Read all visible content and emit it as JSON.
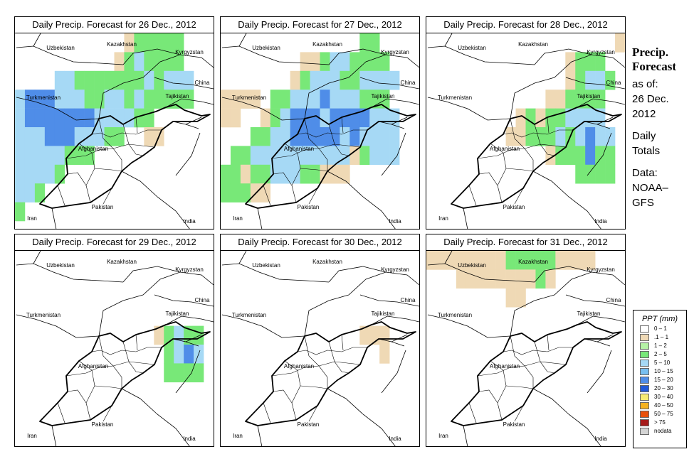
{
  "panels": [
    {
      "title": "Daily Precip. Forecast for  26 Dec., 2012",
      "grid": [
        "...........aBBBBB...",
        "..........aBCBBBB...",
        "....CCBBBBBBBCBCCC..",
        "CDDDCCCBBCCBCBBBBB..",
        "CDDDDDDDCCCCBB......",
        "CCCDDDCCCBB..aa.....",
        "CCCCCBBB............",
        "CCCCB...............",
        "CCB.................",
        "B..................."
      ]
    },
    {
      "title": "Daily Precip. Forecast for  27 Dec., 2012",
      "grid": [
        "..............BB....",
        "........aaBCCBBBB...",
        ".......aBCCCBBCCCC..",
        "aaaa.BBCCCDCCCBBB...",
        "aa..aBCDDDCDDDDCCC..",
        "...BBCCDDDDDCDCCCC..",
        ".BBCCCCCCCCCCaBCCC..",
        "BBaBBCCCBBaaa.......",
        "BBBaa...............",
        "...................."
      ]
    },
    {
      "title": "Daily Precip. Forecast for  28 Dec., 2012",
      "grid": [
        "...................a",
        "..............aBBB..",
        "..............aBCCB.",
        "............aaBBBB..",
        ".........aBaBBCCCC..",
        "........aaBBBCBCDCC.",
        "............aBBBDBB.",
        "...............BBBB.",
        "....................",
        "...................."
      ]
    },
    {
      "title": "Daily Precip. Forecast for  29 Dec., 2012",
      "grid": [
        "....................",
        "....................",
        "....................",
        "....................",
        "..............aBCBB.",
        "...............BCDC.",
        "...............BBBB.",
        "....................",
        "....................",
        "...................."
      ]
    },
    {
      "title": "Daily Precip. Forecast for  30 Dec., 2012",
      "grid": [
        "....................",
        "....................",
        "....................",
        "....................",
        "..............aaa...",
        "................a...",
        "....................",
        "....................",
        "....................",
        "...................."
      ]
    },
    {
      "title": "Daily Precip. Forecast for  31 Dec., 2012",
      "grid": [
        "aaaaaaaaBBBBBaaaa...",
        "...aaaaaaaaBa.......",
        "........aa..........",
        "....................",
        "....................",
        "....................",
        "....................",
        "....................",
        "....................",
        "...................."
      ]
    }
  ],
  "country_labels": [
    {
      "name": "Uzbekistan"
    },
    {
      "name": "Kazakhstan"
    },
    {
      "name": "Kyrgyzstan"
    },
    {
      "name": "China"
    },
    {
      "name": "Turkmenistan"
    },
    {
      "name": "Tajikistan"
    },
    {
      "name": "Afghanistan"
    },
    {
      "name": "Pakistan"
    },
    {
      "name": "Iran"
    },
    {
      "name": "India"
    }
  ],
  "side_panel": {
    "heading_line1": "Precip.",
    "heading_line2": "Forecast",
    "as_of": "as of:",
    "date_line1": "26 Dec.",
    "date_line2": "2012",
    "totals_line1": "Daily",
    "totals_line2": "Totals",
    "data_line1": "Data:",
    "data_line2": "NOAA–",
    "data_line3": "GFS"
  },
  "legend": {
    "title": "PPT (mm)",
    "items": [
      {
        "key": ".",
        "label": "0 – 1",
        "color": "#ffffff"
      },
      {
        "key": "a",
        "label": ".1 – 1",
        "color": "#efd9b5"
      },
      {
        "key": "b",
        "label": "1 – 2",
        "color": "#b5f2a5"
      },
      {
        "key": "B",
        "label": "2 – 5",
        "color": "#78e878"
      },
      {
        "key": "C",
        "label": "5 – 10",
        "color": "#a6d9f5"
      },
      {
        "key": "c",
        "label": "10 – 15",
        "color": "#78bff0"
      },
      {
        "key": "D",
        "label": "15 – 20",
        "color": "#4f8de8"
      },
      {
        "key": "E",
        "label": "20 – 30",
        "color": "#2159d9"
      },
      {
        "key": "F",
        "label": "30 – 40",
        "color": "#f7eb73"
      },
      {
        "key": "G",
        "label": "40 – 50",
        "color": "#f5b221"
      },
      {
        "key": "H",
        "label": "50 – 75",
        "color": "#e8500a"
      },
      {
        "key": "I",
        "label": "> 75",
        "color": "#a61a1a"
      },
      {
        "key": "N",
        "label": "nodata",
        "color": "#d4d4d4"
      }
    ]
  }
}
